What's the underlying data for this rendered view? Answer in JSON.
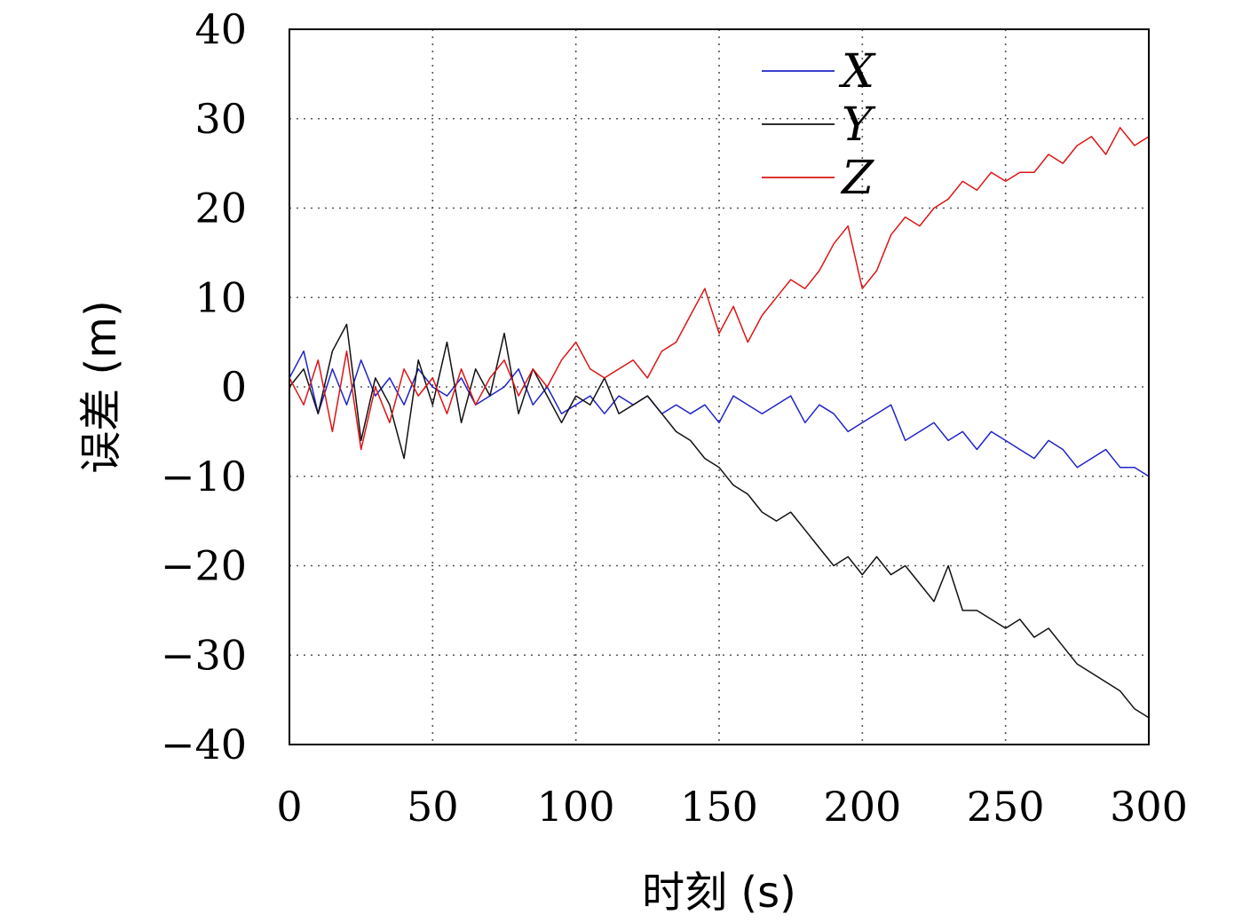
{
  "chart_data": {
    "type": "line",
    "xlabel": "时刻 (s)",
    "ylabel": "误差 (m)",
    "xlim": [
      0,
      300
    ],
    "ylim": [
      -40,
      40
    ],
    "xticks": [
      {
        "value": 0,
        "label": "0"
      },
      {
        "value": 50,
        "label": "50"
      },
      {
        "value": 100,
        "label": "100"
      },
      {
        "value": 150,
        "label": "150"
      },
      {
        "value": 200,
        "label": "200"
      },
      {
        "value": 250,
        "label": "250"
      },
      {
        "value": 300,
        "label": "300"
      }
    ],
    "yticks": [
      {
        "value": 40,
        "label": "40"
      },
      {
        "value": 30,
        "label": "30"
      },
      {
        "value": 20,
        "label": "20"
      },
      {
        "value": 10,
        "label": "10"
      },
      {
        "value": 0,
        "label": "0"
      },
      {
        "value": -10,
        "label": "−10"
      },
      {
        "value": -20,
        "label": "−20"
      },
      {
        "value": -30,
        "label": "−30"
      },
      {
        "value": -40,
        "label": "−40"
      }
    ],
    "grid": true,
    "legend_position": "top-center",
    "x": [
      0,
      5,
      10,
      15,
      20,
      25,
      30,
      35,
      40,
      45,
      50,
      55,
      60,
      65,
      70,
      75,
      80,
      85,
      90,
      95,
      100,
      105,
      110,
      115,
      120,
      125,
      130,
      135,
      140,
      145,
      150,
      155,
      160,
      165,
      170,
      175,
      180,
      185,
      190,
      195,
      200,
      205,
      210,
      215,
      220,
      225,
      230,
      235,
      240,
      245,
      250,
      255,
      260,
      265,
      270,
      275,
      280,
      285,
      290,
      295,
      300
    ],
    "series": [
      {
        "name": "X",
        "color": "#1f24c8",
        "values": [
          1,
          4,
          -3,
          2,
          -2,
          3,
          -1,
          1,
          -2,
          2,
          0,
          -1,
          1,
          -2,
          -1,
          0,
          2,
          -2,
          0,
          -3,
          -2,
          -1,
          -3,
          -1,
          -2,
          -1,
          -3,
          -2,
          -3,
          -2,
          -4,
          -1,
          -2,
          -3,
          -2,
          -1,
          -4,
          -2,
          -3,
          -5,
          -4,
          -3,
          -2,
          -6,
          -5,
          -4,
          -6,
          -5,
          -7,
          -5,
          -6,
          -7,
          -8,
          -6,
          -7,
          -9,
          -8,
          -7,
          -9,
          -9,
          -10
        ]
      },
      {
        "name": "Y",
        "color": "#111111",
        "values": [
          0,
          2,
          -3,
          4,
          7,
          -6,
          1,
          -2,
          -8,
          3,
          -2,
          5,
          -4,
          2,
          -1,
          6,
          -3,
          2,
          -1,
          -4,
          -1,
          -2,
          1,
          -3,
          -2,
          -1,
          -3,
          -5,
          -6,
          -8,
          -9,
          -11,
          -12,
          -14,
          -15,
          -14,
          -16,
          -18,
          -20,
          -19,
          -21,
          -19,
          -21,
          -20,
          -22,
          -24,
          -20,
          -25,
          -25,
          -26,
          -27,
          -26,
          -28,
          -27,
          -29,
          -31,
          -32,
          -33,
          -34,
          -36,
          -37
        ]
      },
      {
        "name": "Z",
        "color": "#dd1414",
        "values": [
          1,
          -2,
          3,
          -5,
          4,
          -7,
          0,
          -4,
          2,
          -1,
          1,
          -3,
          2,
          -2,
          1,
          3,
          -1,
          2,
          0,
          3,
          5,
          2,
          1,
          2,
          3,
          1,
          4,
          5,
          8,
          11,
          6,
          9,
          5,
          8,
          10,
          12,
          11,
          13,
          16,
          18,
          11,
          13,
          17,
          19,
          18,
          20,
          21,
          23,
          22,
          24,
          23,
          24,
          24,
          26,
          25,
          27,
          28,
          26,
          29,
          27,
          28
        ]
      }
    ]
  }
}
